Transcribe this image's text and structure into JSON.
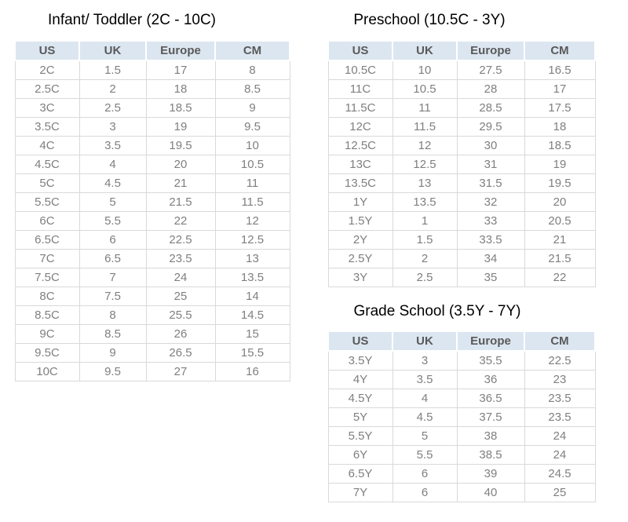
{
  "page": {
    "background": "#ffffff"
  },
  "styles": {
    "header_bg": "#dce6f1",
    "header_text": "#595959",
    "cell_text": "#7f7f7f",
    "cell_border": "#d9d9d9",
    "title_text": "#000000"
  },
  "tables": [
    {
      "id": "infant-toddler",
      "title": "Infant/ Toddler (2C - 10C)",
      "columns": [
        "US",
        "UK",
        "Europe",
        "CM"
      ],
      "rows": [
        [
          "2C",
          "1.5",
          "17",
          "8"
        ],
        [
          "2.5C",
          "2",
          "18",
          "8.5"
        ],
        [
          "3C",
          "2.5",
          "18.5",
          "9"
        ],
        [
          "3.5C",
          "3",
          "19",
          "9.5"
        ],
        [
          "4C",
          "3.5",
          "19.5",
          "10"
        ],
        [
          "4.5C",
          "4",
          "20",
          "10.5"
        ],
        [
          "5C",
          "4.5",
          "21",
          "11"
        ],
        [
          "5.5C",
          "5",
          "21.5",
          "11.5"
        ],
        [
          "6C",
          "5.5",
          "22",
          "12"
        ],
        [
          "6.5C",
          "6",
          "22.5",
          "12.5"
        ],
        [
          "7C",
          "6.5",
          "23.5",
          "13"
        ],
        [
          "7.5C",
          "7",
          "24",
          "13.5"
        ],
        [
          "8C",
          "7.5",
          "25",
          "14"
        ],
        [
          "8.5C",
          "8",
          "25.5",
          "14.5"
        ],
        [
          "9C",
          "8.5",
          "26",
          "15"
        ],
        [
          "9.5C",
          "9",
          "26.5",
          "15.5"
        ],
        [
          "10C",
          "9.5",
          "27",
          "16"
        ]
      ]
    },
    {
      "id": "preschool",
      "title": "Preschool (10.5C - 3Y)",
      "columns": [
        "US",
        "UK",
        "Europe",
        "CM"
      ],
      "rows": [
        [
          "10.5C",
          "10",
          "27.5",
          "16.5"
        ],
        [
          "11C",
          "10.5",
          "28",
          "17"
        ],
        [
          "11.5C",
          "11",
          "28.5",
          "17.5"
        ],
        [
          "12C",
          "11.5",
          "29.5",
          "18"
        ],
        [
          "12.5C",
          "12",
          "30",
          "18.5"
        ],
        [
          "13C",
          "12.5",
          "31",
          "19"
        ],
        [
          "13.5C",
          "13",
          "31.5",
          "19.5"
        ],
        [
          "1Y",
          "13.5",
          "32",
          "20"
        ],
        [
          "1.5Y",
          "1",
          "33",
          "20.5"
        ],
        [
          "2Y",
          "1.5",
          "33.5",
          "21"
        ],
        [
          "2.5Y",
          "2",
          "34",
          "21.5"
        ],
        [
          "3Y",
          "2.5",
          "35",
          "22"
        ]
      ]
    },
    {
      "id": "grade-school",
      "title": "Grade School (3.5Y - 7Y)",
      "columns": [
        "US",
        "UK",
        "Europe",
        "CM"
      ],
      "rows": [
        [
          "3.5Y",
          "3",
          "35.5",
          "22.5"
        ],
        [
          "4Y",
          "3.5",
          "36",
          "23"
        ],
        [
          "4.5Y",
          "4",
          "36.5",
          "23.5"
        ],
        [
          "5Y",
          "4.5",
          "37.5",
          "23.5"
        ],
        [
          "5.5Y",
          "5",
          "38",
          "24"
        ],
        [
          "6Y",
          "5.5",
          "38.5",
          "24"
        ],
        [
          "6.5Y",
          "6",
          "39",
          "24.5"
        ],
        [
          "7Y",
          "6",
          "40",
          "25"
        ]
      ]
    }
  ]
}
